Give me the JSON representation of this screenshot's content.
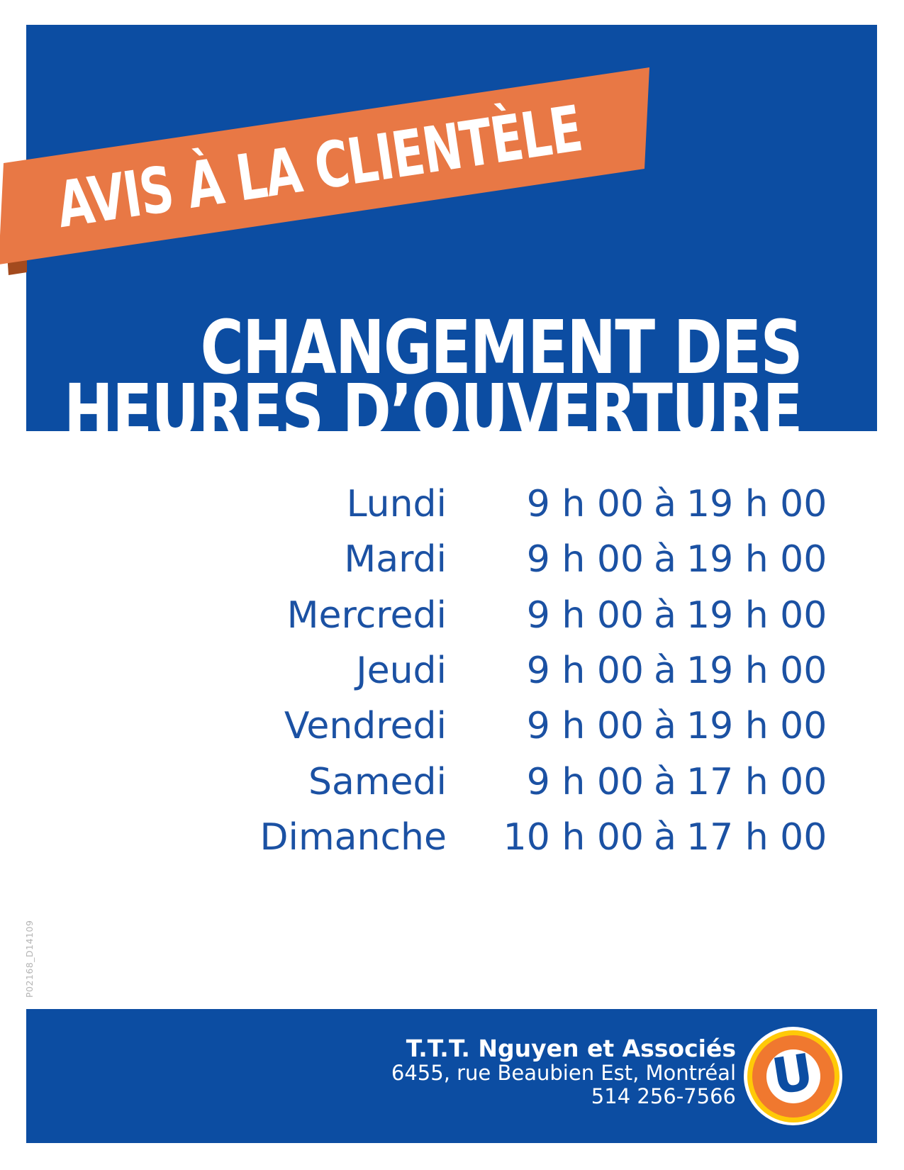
{
  "banner": {
    "label": "AVIS À LA CLIENTÈLE"
  },
  "title": {
    "line1": "CHANGEMENT DES",
    "line2": "HEURES D’OUVERTURE"
  },
  "schedule": {
    "separator": "à",
    "rows": [
      {
        "day": "Lundi",
        "open": "9 h 00",
        "close": "19 h 00"
      },
      {
        "day": "Mardi",
        "open": "9 h 00",
        "close": "19 h 00"
      },
      {
        "day": "Mercredi",
        "open": "9 h 00",
        "close": "19 h 00"
      },
      {
        "day": "Jeudi",
        "open": "9 h 00",
        "close": "19 h 00"
      },
      {
        "day": "Vendredi",
        "open": "9 h 00",
        "close": "19 h 00"
      },
      {
        "day": "Samedi",
        "open": "9 h 00",
        "close": "17 h 00"
      },
      {
        "day": "Dimanche",
        "open": "10 h 00",
        "close": "17 h 00"
      }
    ]
  },
  "footer": {
    "company": "T.T.T. Nguyen et Associés",
    "address": "6455, rue Beaubien Est, Montréal",
    "phone": "514 256-7566",
    "logo_letter": "U"
  },
  "side_code": "P02168_D14109",
  "colors": {
    "box_blue": "#0c4da2",
    "text_blue": "#1b51a3",
    "ribbon_orange": "#e87845",
    "ribbon_fold": "#a34a1e",
    "logo_orange": "#f0782f",
    "logo_yellow": "#ffc907",
    "side_code_gray": "#b4b4b4",
    "white": "#ffffff"
  }
}
